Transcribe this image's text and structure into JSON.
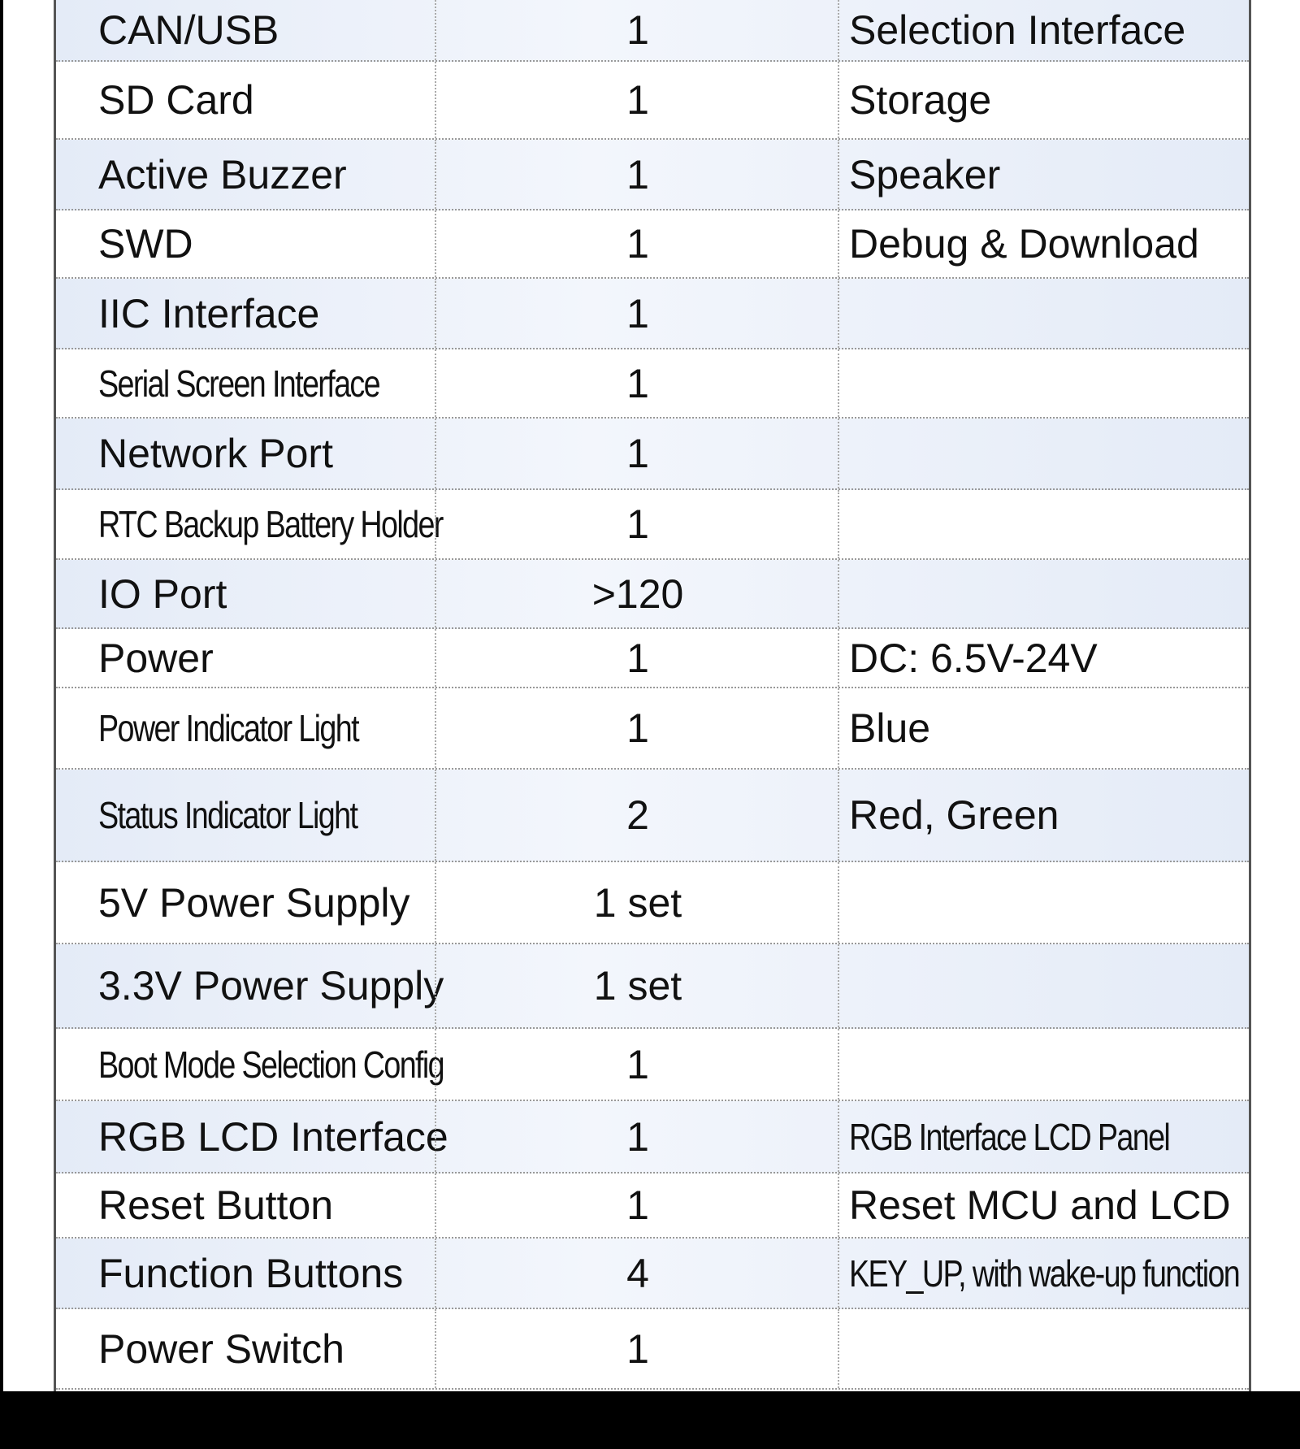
{
  "rows": [
    {
      "name": "CAN/USB",
      "qty": "1",
      "note": "Selection Interface"
    },
    {
      "name": "SD Card",
      "qty": "1",
      "note": "Storage"
    },
    {
      "name": "Active Buzzer",
      "qty": "1",
      "note": "Speaker"
    },
    {
      "name": "SWD",
      "qty": "1",
      "note": "Debug & Download"
    },
    {
      "name": "IIC Interface",
      "qty": "1",
      "note": ""
    },
    {
      "name": "Serial Screen Interface",
      "qty": "1",
      "note": ""
    },
    {
      "name": "Network Port",
      "qty": "1",
      "note": ""
    },
    {
      "name": "RTC Backup Battery Holder",
      "qty": "1",
      "note": ""
    },
    {
      "name": "IO Port",
      "qty": ">120",
      "note": ""
    },
    {
      "name": "Power",
      "qty": "1",
      "note": "DC: 6.5V-24V"
    },
    {
      "name": "Power Indicator Light",
      "qty": "1",
      "note": "Blue"
    },
    {
      "name": "Status Indicator Light",
      "qty": "2",
      "note": "Red, Green"
    },
    {
      "name": "5V Power Supply",
      "qty": "1 set",
      "note": ""
    },
    {
      "name": "3.3V Power Supply",
      "qty": "1 set",
      "note": ""
    },
    {
      "name": "Boot Mode Selection Config",
      "qty": "1",
      "note": ""
    },
    {
      "name": "RGB LCD Interface",
      "qty": "1",
      "note": "RGB Interface LCD Panel"
    },
    {
      "name": "Reset Button",
      "qty": "1",
      "note": "Reset MCU and LCD"
    },
    {
      "name": "Function Buttons",
      "qty": "4",
      "note": "KEY_UP, with wake-up function"
    },
    {
      "name": "Power Switch",
      "qty": "1",
      "note": ""
    }
  ]
}
